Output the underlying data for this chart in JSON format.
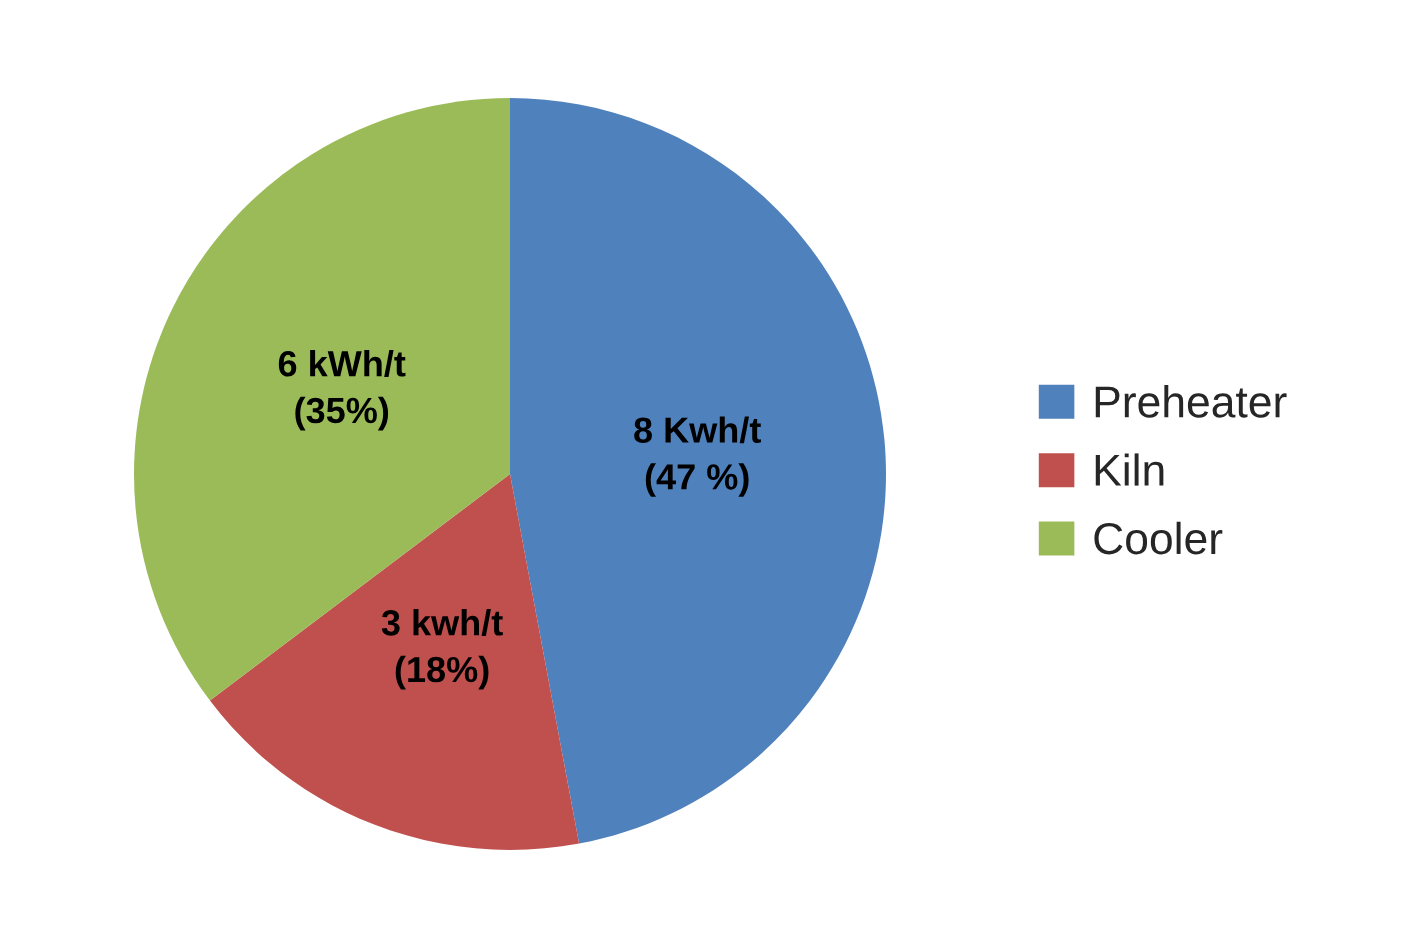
{
  "chart_data": {
    "type": "pie",
    "categories": [
      "Preheater",
      "Kiln",
      "Cooler"
    ],
    "values": [
      8,
      3,
      6
    ],
    "colors": [
      "#4f81bd",
      "#c0504d",
      "#9bbb59"
    ],
    "value_labels": [
      "8 Kwh/t\n(47 %)",
      "3 kwh/t\n(18%)",
      "6 kWh/t\n(35%)"
    ],
    "legend": "right"
  }
}
